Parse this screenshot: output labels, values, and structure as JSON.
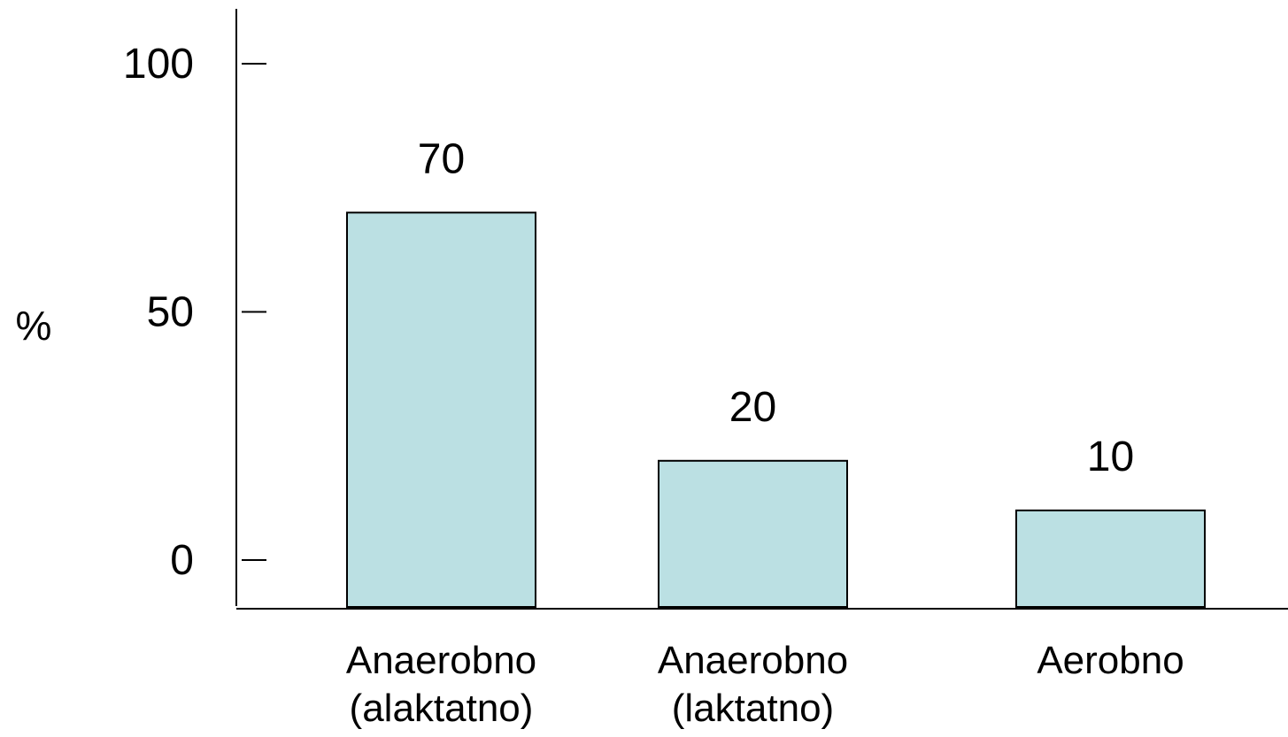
{
  "chart_data": {
    "type": "bar",
    "categories": [
      [
        "Anaerobno",
        "(alaktatno)"
      ],
      [
        "Anaerobno",
        "(laktatno)"
      ],
      [
        "Aerobno"
      ]
    ],
    "values": [
      70,
      20,
      10
    ],
    "data_labels": [
      "70",
      "20",
      "10"
    ],
    "y_ticks": [
      0,
      50,
      100
    ],
    "y_tick_labels": [
      "0",
      "50",
      "100"
    ],
    "ylabel": "%",
    "xlabel": "",
    "title": "",
    "grid": false,
    "legend": "none",
    "bar_color": "#bbe0e3",
    "bar_edge_color": "#000000"
  }
}
